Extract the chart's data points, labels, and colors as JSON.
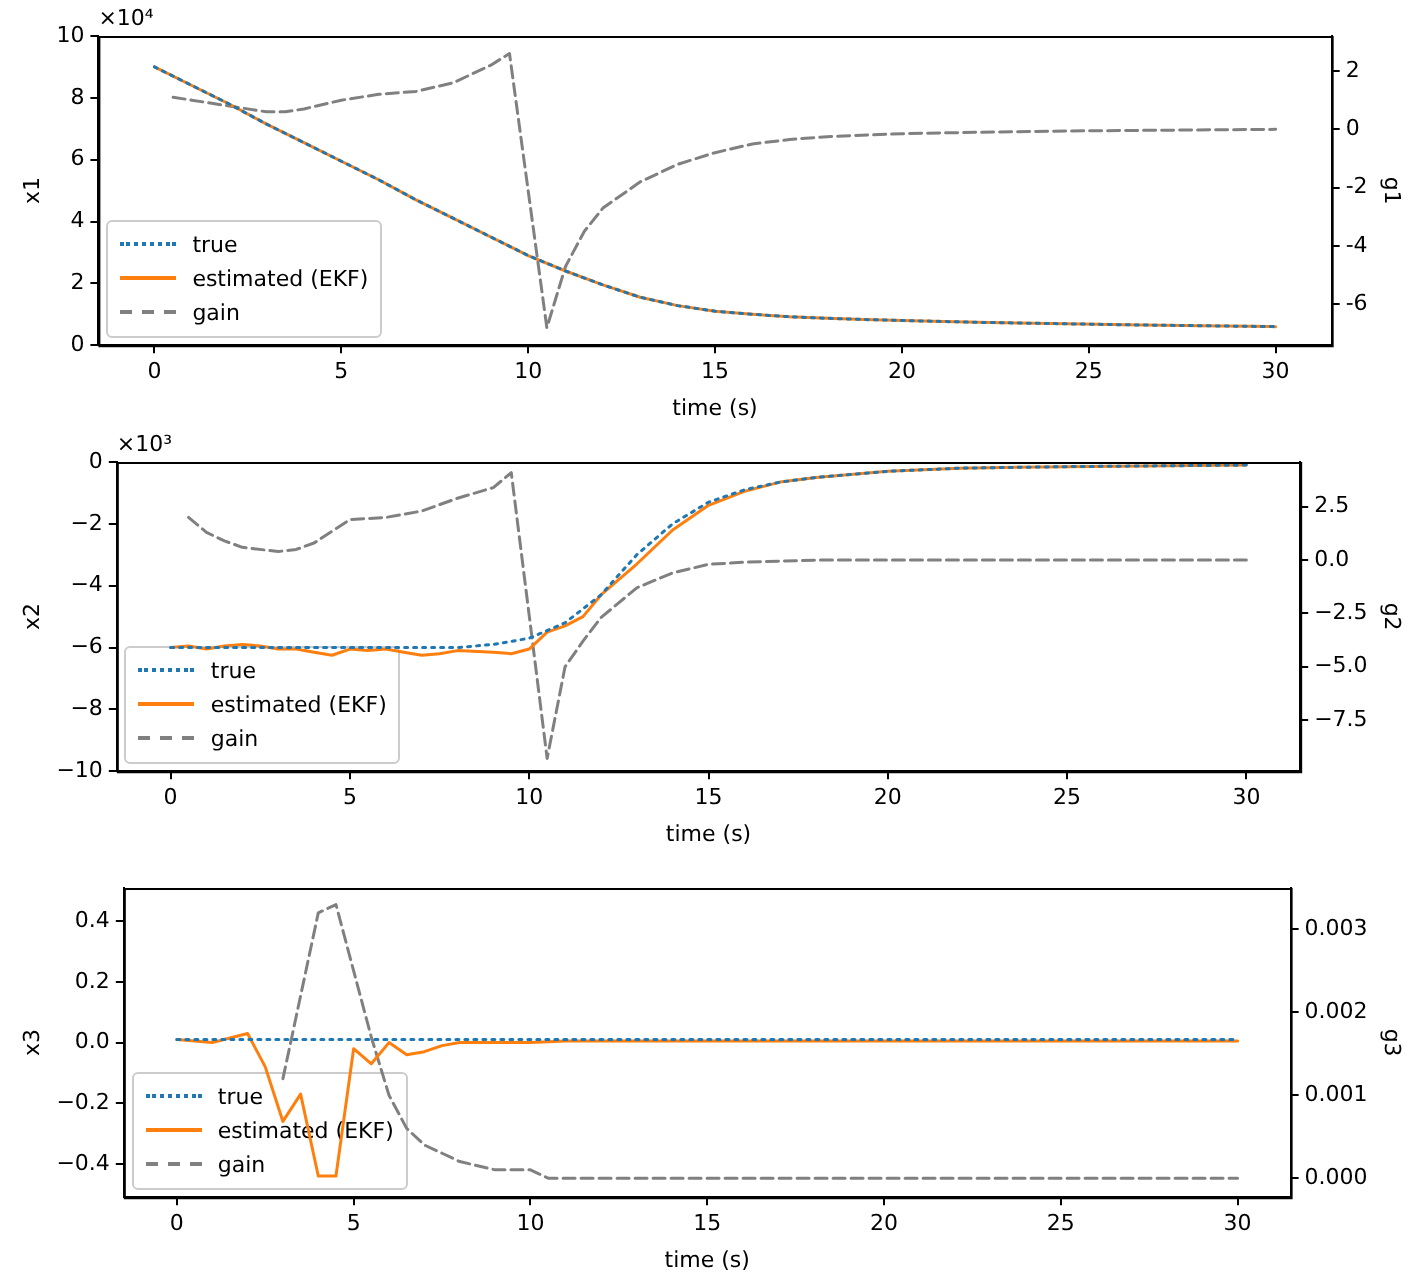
{
  "chart_data": [
    {
      "type": "line",
      "xlabel": "time (s)",
      "ylabel": "x1",
      "y2label": "g1",
      "annotations": [
        "×10⁴"
      ],
      "legend": "bottom left",
      "xlim": [
        -1.5,
        31.5
      ],
      "xticks": [
        0,
        5,
        10,
        15,
        20,
        25,
        30
      ],
      "ylim": [
        0,
        10
      ],
      "yticks": [
        0,
        2,
        4,
        6,
        8,
        10
      ],
      "y2lim": [
        -7.4,
        3.2
      ],
      "y2ticks": [
        -6,
        -4,
        -2,
        0,
        2
      ],
      "series": [
        {
          "name": "true",
          "color": "#1f77b4",
          "line_style": "dotted",
          "x": [
            0,
            1,
            2,
            3,
            4,
            5,
            6,
            7,
            8,
            9,
            10,
            11,
            12,
            13,
            14,
            15,
            16,
            17,
            18,
            19,
            20,
            22,
            24,
            26,
            28,
            30
          ],
          "values": [
            9.0,
            8.4,
            7.8,
            7.15,
            6.55,
            5.95,
            5.35,
            4.7,
            4.1,
            3.5,
            2.9,
            2.4,
            1.95,
            1.55,
            1.28,
            1.1,
            1.0,
            0.92,
            0.87,
            0.83,
            0.8,
            0.74,
            0.7,
            0.66,
            0.63,
            0.6
          ]
        },
        {
          "name": "estimated (EKF)",
          "color": "#ff7f0e",
          "line_style": "solid",
          "x": [
            0,
            1,
            2,
            3,
            4,
            5,
            6,
            7,
            8,
            9,
            10,
            11,
            12,
            13,
            14,
            15,
            16,
            17,
            18,
            19,
            20,
            22,
            24,
            26,
            28,
            30
          ],
          "values": [
            9.0,
            8.4,
            7.8,
            7.15,
            6.55,
            5.95,
            5.35,
            4.7,
            4.1,
            3.5,
            2.9,
            2.4,
            1.95,
            1.55,
            1.28,
            1.1,
            1.0,
            0.92,
            0.87,
            0.83,
            0.8,
            0.74,
            0.7,
            0.66,
            0.63,
            0.6
          ]
        },
        {
          "name": "gain",
          "color": "#808080",
          "line_style": "dashed",
          "axis": "y2",
          "x": [
            0.5,
            1,
            2,
            3,
            3.5,
            4,
            5,
            6,
            7,
            8,
            9,
            9.5,
            10.5,
            11,
            11.5,
            12,
            13,
            14,
            15,
            16,
            17,
            18,
            20,
            22,
            25,
            30
          ],
          "values": [
            1.1,
            1.0,
            0.8,
            0.6,
            0.6,
            0.7,
            1.0,
            1.2,
            1.3,
            1.6,
            2.2,
            2.6,
            -6.8,
            -4.7,
            -3.5,
            -2.7,
            -1.8,
            -1.2,
            -0.8,
            -0.5,
            -0.35,
            -0.25,
            -0.15,
            -0.1,
            -0.05,
            0
          ]
        }
      ]
    },
    {
      "type": "line",
      "xlabel": "time (s)",
      "ylabel": "x2",
      "y2label": "g2",
      "annotations": [
        "×10³"
      ],
      "legend": "bottom left",
      "xlim": [
        -1.5,
        31.5
      ],
      "xticks": [
        0,
        5,
        10,
        15,
        20,
        25,
        30
      ],
      "ylim": [
        -10,
        0
      ],
      "yticks": [
        {
          "value": -10,
          "label": "−10"
        },
        {
          "value": -8,
          "label": "−8"
        },
        {
          "value": -6,
          "label": "−6"
        },
        {
          "value": -4,
          "label": "−4"
        },
        {
          "value": -2,
          "label": "−2"
        },
        0
      ],
      "y2lim": [
        -9.9,
        4.6
      ],
      "y2ticks": [
        {
          "value": -7.5,
          "label": "−7.5"
        },
        {
          "value": -5,
          "label": "−5.0"
        },
        {
          "value": -2.5,
          "label": "−2.5"
        },
        {
          "value": 0,
          "label": "0.0"
        },
        {
          "value": 2.5,
          "label": "2.5"
        }
      ],
      "series": [
        {
          "name": "true",
          "color": "#1f77b4",
          "line_style": "dotted",
          "x": [
            0,
            2,
            4,
            6,
            8,
            9,
            10,
            11,
            12,
            13,
            14,
            15,
            16,
            17,
            18,
            20,
            22,
            25,
            30
          ],
          "values": [
            -6.0,
            -6.0,
            -6.0,
            -6.0,
            -6.0,
            -5.9,
            -5.7,
            -5.2,
            -4.3,
            -3.0,
            -2.0,
            -1.3,
            -0.9,
            -0.65,
            -0.5,
            -0.3,
            -0.2,
            -0.15,
            -0.1
          ]
        },
        {
          "name": "estimated (EKF)",
          "color": "#ff7f0e",
          "line_style": "solid",
          "x": [
            0,
            0.5,
            1,
            1.5,
            2,
            2.5,
            3,
            3.5,
            4,
            4.5,
            5,
            5.5,
            6,
            6.5,
            7,
            7.5,
            8,
            9,
            9.5,
            10,
            10.5,
            11,
            11.5,
            12,
            13,
            14,
            15,
            16,
            17,
            18,
            20,
            22,
            25,
            30
          ],
          "values": [
            -6.0,
            -5.95,
            -6.05,
            -5.95,
            -5.9,
            -5.95,
            -6.05,
            -6.05,
            -6.15,
            -6.25,
            -6.05,
            -6.1,
            -6.05,
            -6.15,
            -6.25,
            -6.2,
            -6.1,
            -6.15,
            -6.2,
            -6.05,
            -5.5,
            -5.3,
            -5.0,
            -4.3,
            -3.3,
            -2.2,
            -1.4,
            -0.95,
            -0.65,
            -0.5,
            -0.3,
            -0.2,
            -0.15,
            -0.1
          ]
        },
        {
          "name": "gain",
          "color": "#808080",
          "line_style": "dashed",
          "axis": "y2",
          "x": [
            0.5,
            1,
            1.5,
            2,
            3,
            3.5,
            4,
            5,
            6,
            7,
            8,
            9,
            9.5,
            10.5,
            11,
            11.5,
            12,
            13,
            14,
            15,
            16,
            18,
            30
          ],
          "values": [
            2.0,
            1.3,
            0.9,
            0.6,
            0.4,
            0.5,
            0.8,
            1.9,
            2.0,
            2.3,
            2.9,
            3.4,
            4.1,
            -9.3,
            -5.0,
            -3.8,
            -2.7,
            -1.3,
            -0.6,
            -0.2,
            -0.1,
            0,
            0
          ]
        }
      ]
    },
    {
      "type": "line",
      "xlabel": "time (s)",
      "ylabel": "x3",
      "y2label": "g3",
      "legend": "bottom left",
      "xlim": [
        -1.5,
        31.5
      ],
      "xticks": [
        0,
        5,
        10,
        15,
        20,
        25,
        30
      ],
      "ylim": [
        -0.51,
        0.51
      ],
      "yticks": [
        {
          "value": -0.4,
          "label": "−0.4"
        },
        {
          "value": -0.2,
          "label": "−0.2"
        },
        {
          "value": 0,
          "label": "0.0"
        },
        {
          "value": 0.2,
          "label": "0.2"
        },
        {
          "value": 0.4,
          "label": "0.4"
        }
      ],
      "y2lim": [
        -0.00023,
        0.0035
      ],
      "y2ticks": [
        {
          "value": 0,
          "label": "0.000"
        },
        {
          "value": 0.001,
          "label": "0.001"
        },
        {
          "value": 0.002,
          "label": "0.002"
        },
        {
          "value": 0.003,
          "label": "0.003"
        }
      ],
      "series": [
        {
          "name": "true",
          "color": "#1f77b4",
          "line_style": "dotted",
          "x": [
            0,
            30
          ],
          "values": [
            0.01,
            0.01
          ]
        },
        {
          "name": "estimated (EKF)",
          "color": "#ff7f0e",
          "line_style": "solid",
          "x": [
            0,
            1,
            1.5,
            2,
            2.5,
            3,
            3.5,
            4,
            4.5,
            5,
            5.5,
            6,
            6.5,
            7,
            7.5,
            8,
            10,
            11,
            30
          ],
          "values": [
            0.01,
            0.0,
            0.015,
            0.03,
            -0.08,
            -0.26,
            -0.17,
            -0.44,
            -0.44,
            -0.02,
            -0.07,
            0.0,
            -0.04,
            -0.03,
            -0.01,
            0.0,
            0.0,
            0.005,
            0.005
          ]
        },
        {
          "name": "gain",
          "color": "#808080",
          "line_style": "dashed",
          "axis": "y2",
          "x": [
            3,
            3.5,
            4,
            4.5,
            5,
            5.5,
            6,
            6.5,
            7,
            7.5,
            8,
            9,
            10,
            10.5,
            11,
            12,
            30
          ],
          "values": [
            0.0012,
            0.0022,
            0.0032,
            0.0033,
            0.0025,
            0.0017,
            0.001,
            0.0006,
            0.0004,
            0.0003,
            0.0002,
            0.0001,
            0.0001,
            0,
            0,
            0,
            0
          ]
        }
      ]
    }
  ]
}
